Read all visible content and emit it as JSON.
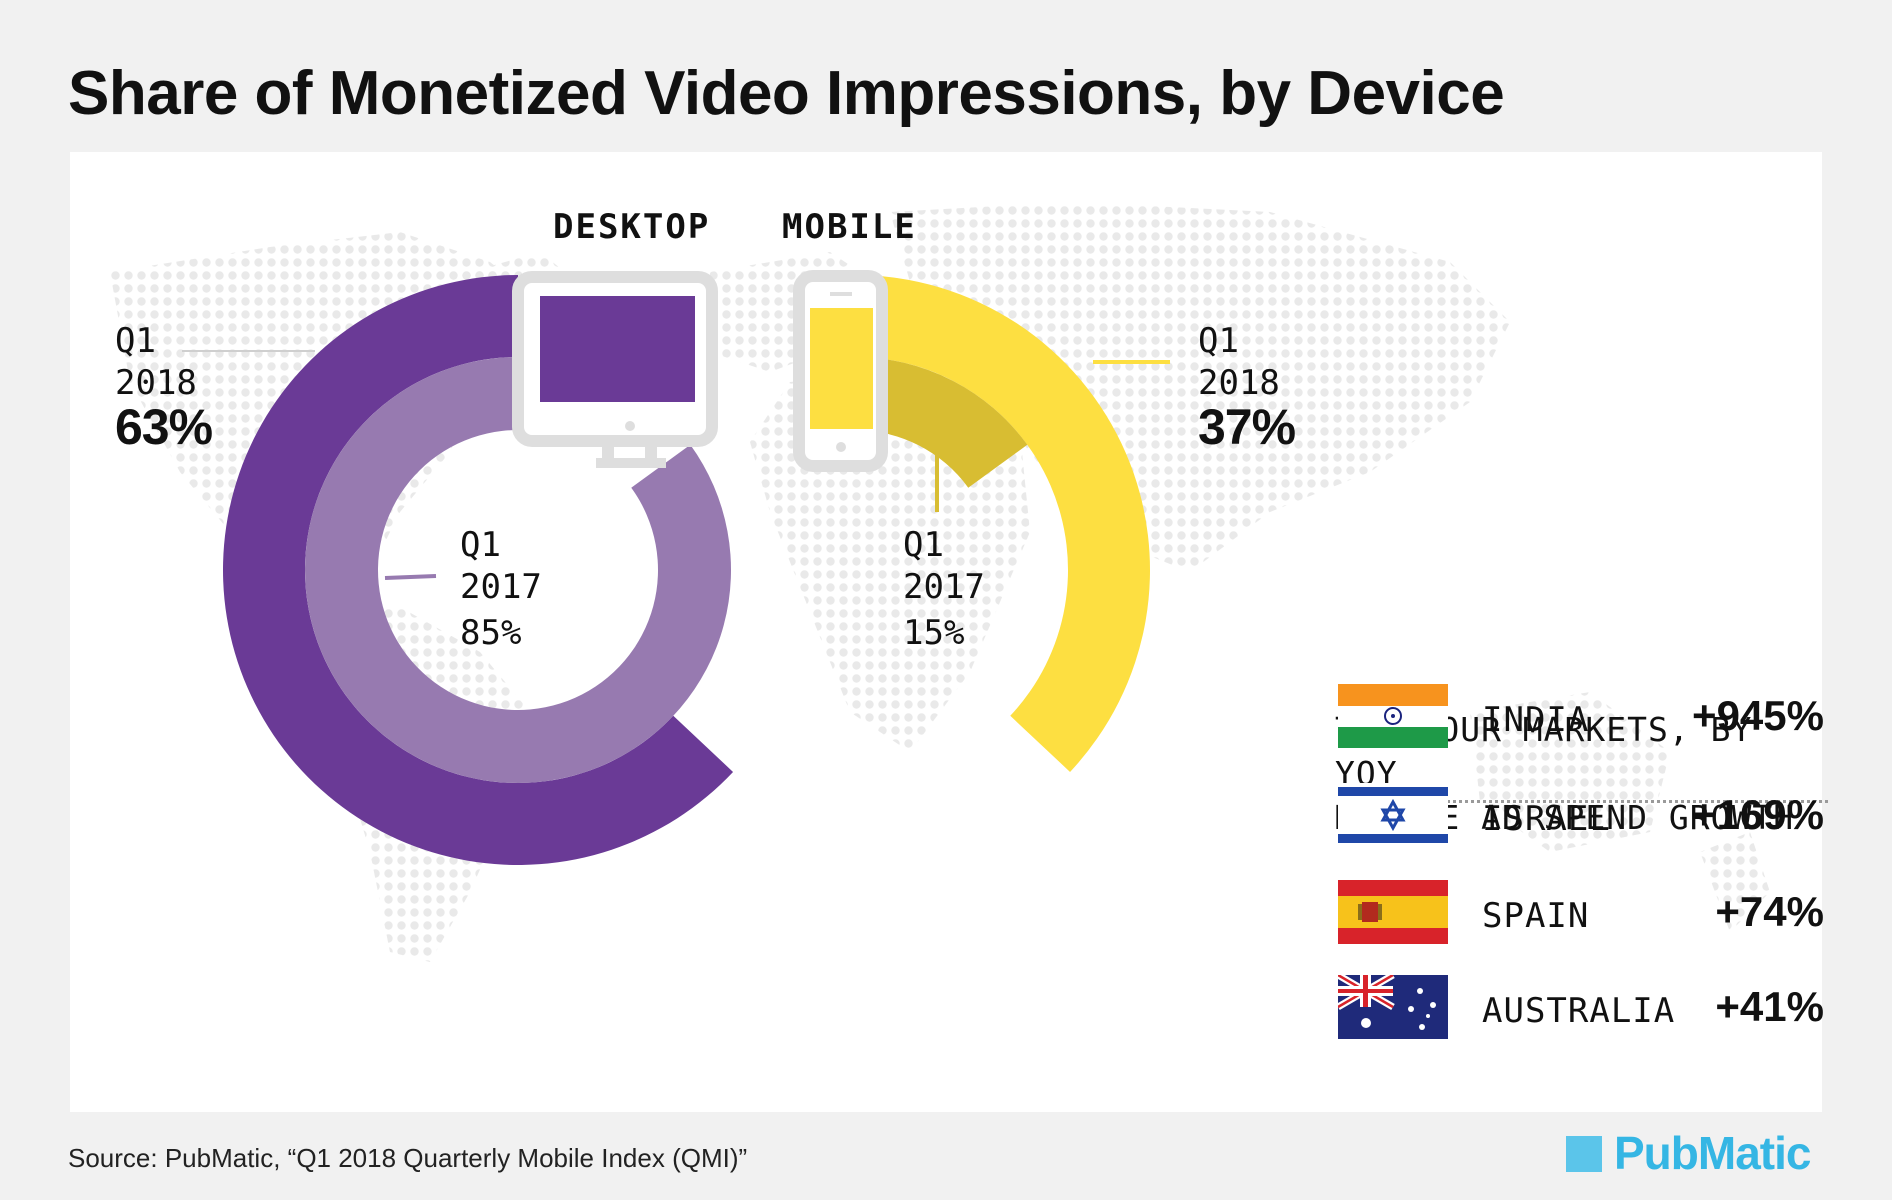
{
  "title": "Share of Monetized Video Impressions, by Device",
  "chart_data": {
    "type": "pie",
    "series": [
      {
        "period": "Q1 2018",
        "slices": [
          {
            "category": "DESKTOP",
            "value": 63
          },
          {
            "category": "MOBILE",
            "value": 37
          }
        ]
      },
      {
        "period": "Q1 2017",
        "slices": [
          {
            "category": "DESKTOP",
            "value": 85
          },
          {
            "category": "MOBILE",
            "value": 15
          }
        ]
      }
    ],
    "colors": {
      "desktop_2018": "#6a3a96",
      "desktop_2017": "#977ab0",
      "mobile_2018": "#fddf41",
      "mobile_2017": "#d8bd32"
    }
  },
  "labels": {
    "desktop_header": "DESKTOP",
    "mobile_header": "MOBILE",
    "desktop_2018": {
      "period_line1": "Q1",
      "period_line2": "2018",
      "value": "63%"
    },
    "desktop_2017": {
      "period_line1": "Q1",
      "period_line2": "2017",
      "value": "85%"
    },
    "mobile_2018": {
      "period_line1": "Q1",
      "period_line2": "2018",
      "value": "37%"
    },
    "mobile_2017": {
      "period_line1": "Q1",
      "period_line2": "2017",
      "value": "15%"
    }
  },
  "icons": {
    "desktop": "desktop-monitor-icon",
    "mobile": "smartphone-icon"
  },
  "markets": {
    "title_line1": "TOP FOUR MARKETS, BY YOY",
    "title_line2": "MOBILE AD SPEND GROWTH",
    "items": [
      {
        "name": "INDIA",
        "growth": "+945%",
        "flag": "india-flag-icon"
      },
      {
        "name": "ISRAEL",
        "growth": "+169%",
        "flag": "israel-flag-icon"
      },
      {
        "name": "SPAIN",
        "growth": "+74%",
        "flag": "spain-flag-icon"
      },
      {
        "name": "AUSTRALIA",
        "growth": "+41%",
        "flag": "australia-flag-icon"
      }
    ]
  },
  "source": "Source: PubMatic, “Q1 2018 Quarterly Mobile Index (QMI)”",
  "logo": {
    "text": "PubMatic"
  }
}
